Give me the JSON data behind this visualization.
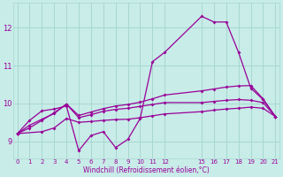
{
  "background_color": "#c8ece8",
  "grid_color": "#a8d8d0",
  "line_color": "#990099",
  "xlabel": "Windchill (Refroidissement éolien,°C)",
  "ylim": [
    8.55,
    12.65
  ],
  "yticks": [
    9,
    10,
    11,
    12
  ],
  "xlim": [
    -0.3,
    21.3
  ],
  "x_ticks": [
    0,
    1,
    2,
    3,
    4,
    5,
    6,
    7,
    8,
    9,
    10,
    11,
    12,
    15,
    16,
    17,
    18,
    19,
    20,
    21
  ],
  "line1_x": [
    0,
    1,
    2,
    3,
    4,
    5,
    6,
    7,
    8,
    9,
    10,
    11,
    12,
    15,
    16,
    17,
    18,
    19,
    20,
    21
  ],
  "line1_y": [
    9.2,
    9.55,
    9.8,
    9.85,
    9.93,
    8.75,
    9.15,
    9.25,
    8.83,
    9.05,
    9.6,
    11.1,
    11.35,
    12.3,
    12.15,
    12.15,
    11.35,
    10.4,
    10.1,
    9.65
  ],
  "line2_x": [
    0,
    2,
    3,
    4,
    5,
    6,
    7,
    8,
    9,
    10,
    11,
    12,
    15,
    16,
    17,
    18,
    19,
    20,
    21
  ],
  "line2_y": [
    9.2,
    9.25,
    9.35,
    9.6,
    9.5,
    9.52,
    9.55,
    9.57,
    9.58,
    9.62,
    9.67,
    9.72,
    9.78,
    9.82,
    9.85,
    9.87,
    9.9,
    9.87,
    9.65
  ],
  "line3_x": [
    0,
    1,
    2,
    3,
    4,
    5,
    6,
    7,
    8,
    9,
    10,
    11,
    12,
    15,
    16,
    17,
    18,
    19,
    20,
    21
  ],
  "line3_y": [
    9.2,
    9.35,
    9.55,
    9.75,
    9.98,
    9.68,
    9.77,
    9.86,
    9.93,
    9.97,
    10.03,
    10.12,
    10.22,
    10.33,
    10.38,
    10.43,
    10.46,
    10.47,
    10.12,
    9.65
  ],
  "line4_x": [
    0,
    1,
    2,
    3,
    4,
    5,
    6,
    7,
    8,
    9,
    10,
    11,
    12,
    15,
    16,
    17,
    18,
    19,
    20,
    21
  ],
  "line4_y": [
    9.2,
    9.42,
    9.58,
    9.73,
    9.98,
    9.62,
    9.7,
    9.79,
    9.84,
    9.87,
    9.92,
    9.97,
    10.02,
    10.02,
    10.05,
    10.08,
    10.1,
    10.08,
    10.02,
    9.65
  ]
}
